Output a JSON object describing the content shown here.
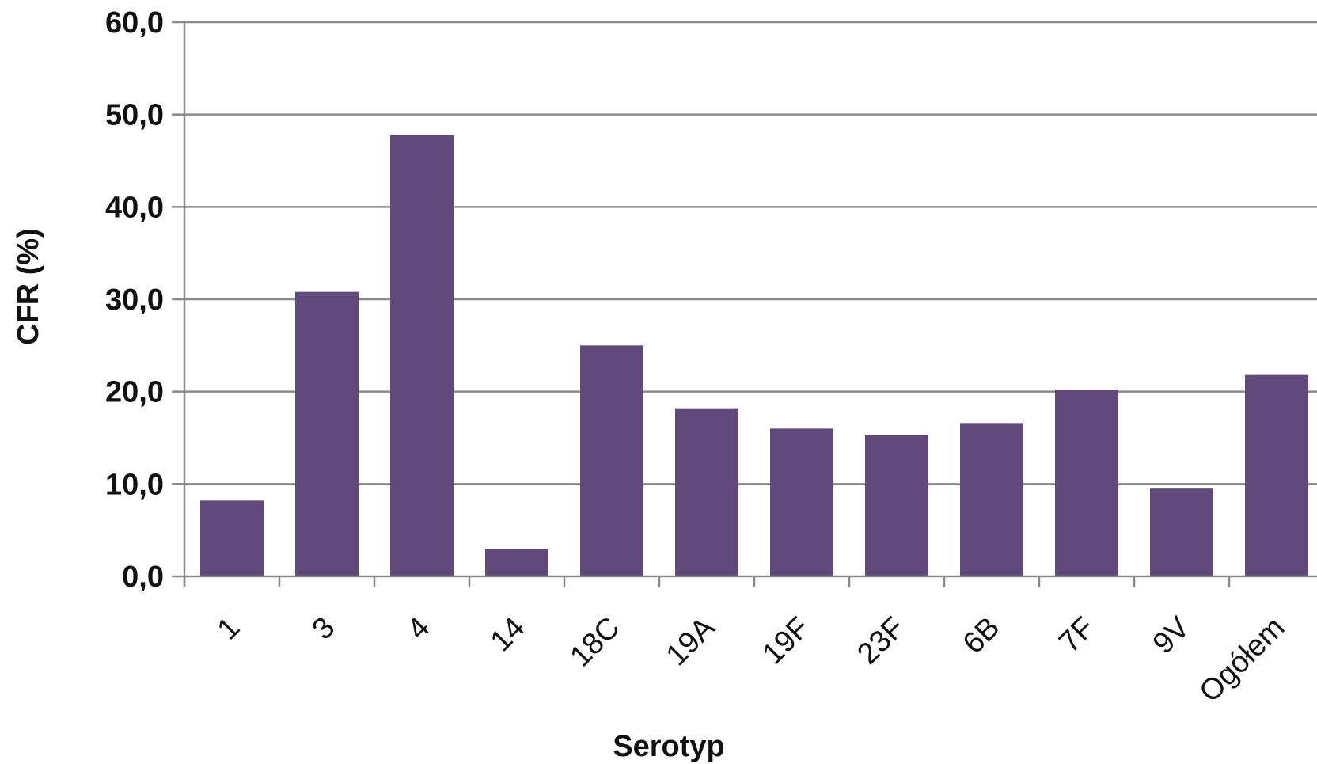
{
  "chart_data": {
    "type": "bar",
    "categories": [
      "1",
      "3",
      "4",
      "14",
      "18C",
      "19A",
      "19F",
      "23F",
      "6B",
      "7F",
      "9V",
      "Ogółem"
    ],
    "values": [
      8.2,
      30.8,
      47.8,
      3.0,
      25.0,
      18.2,
      16.0,
      15.3,
      16.6,
      20.2,
      9.5,
      21.8
    ],
    "xlabel": "Serotyp",
    "ylabel": "CFR (%)",
    "ylim": [
      0,
      60
    ],
    "yticks": [
      "0,0",
      "10,0",
      "20,0",
      "30,0",
      "40,0",
      "50,0",
      "60,0"
    ],
    "grid": true,
    "bar_color": "#5f4a7b",
    "grid_color": "#8a8a8a"
  }
}
